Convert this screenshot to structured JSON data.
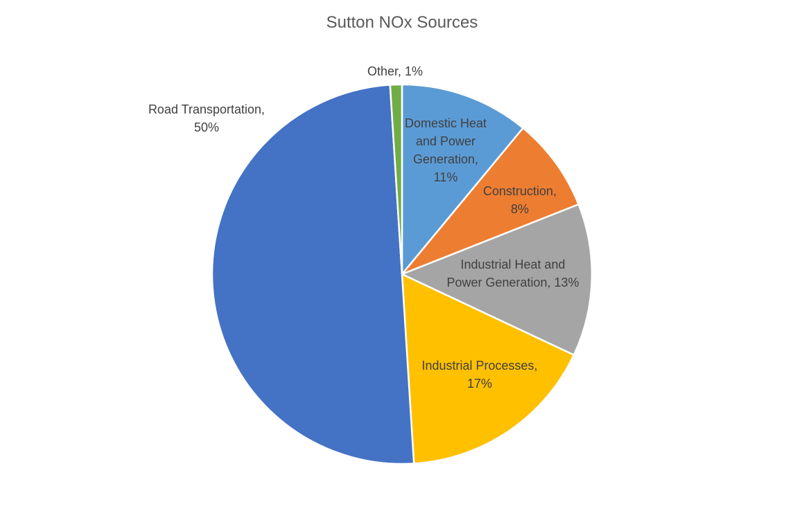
{
  "chart_data": {
    "type": "pie",
    "title": "Sutton NOx Sources",
    "categories": [
      "Domestic Heat and Power Generation",
      "Construction",
      "Industrial Heat and Power Generation",
      "Industrial Processes",
      "Road Transportation",
      "Other"
    ],
    "values": [
      11,
      8,
      13,
      17,
      50,
      1
    ],
    "unit": "%",
    "colors": [
      "#5B9BD5",
      "#ED7D31",
      "#A5A5A5",
      "#FFC000",
      "#4472C4",
      "#70AD47"
    ],
    "start_angle": "12 o'clock, clockwise",
    "legend": "none (data labels)"
  },
  "labels": {
    "other": [
      "Other, 1%"
    ],
    "domestic": [
      "Domestic Heat",
      "and Power",
      "Generation,",
      "11%"
    ],
    "construction": [
      "Construction,",
      "8%"
    ],
    "industrial_heat": [
      "Industrial Heat and",
      "Power Generation, 13%"
    ],
    "industrial_processes": [
      "Industrial Processes,",
      "17%"
    ],
    "road": [
      "Road Transportation,",
      "50%"
    ]
  }
}
